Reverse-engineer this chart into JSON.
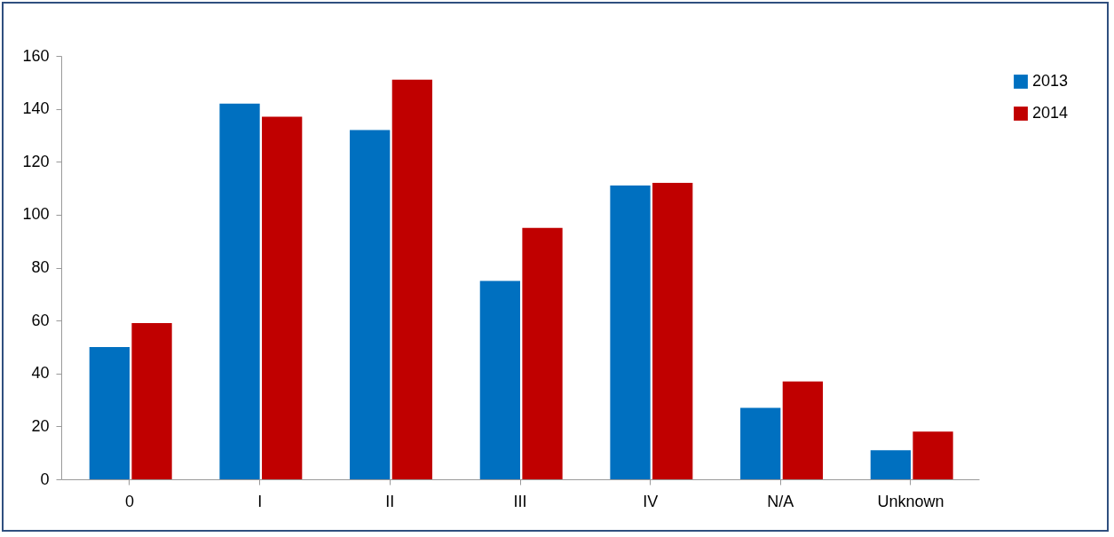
{
  "chart_data": {
    "type": "bar",
    "categories": [
      "0",
      "I",
      "II",
      "III",
      "IV",
      "N/A",
      "Unknown"
    ],
    "series": [
      {
        "name": "2013",
        "color": "#0070c0",
        "values": [
          50,
          142,
          132,
          75,
          111,
          27,
          11
        ]
      },
      {
        "name": "2014",
        "color": "#c00000",
        "values": [
          59,
          137,
          151,
          95,
          112,
          37,
          18
        ]
      }
    ],
    "ylim": [
      0,
      160
    ],
    "yticks": [
      0,
      20,
      40,
      60,
      80,
      100,
      120,
      140,
      160
    ],
    "grid": false,
    "legend": "right"
  }
}
